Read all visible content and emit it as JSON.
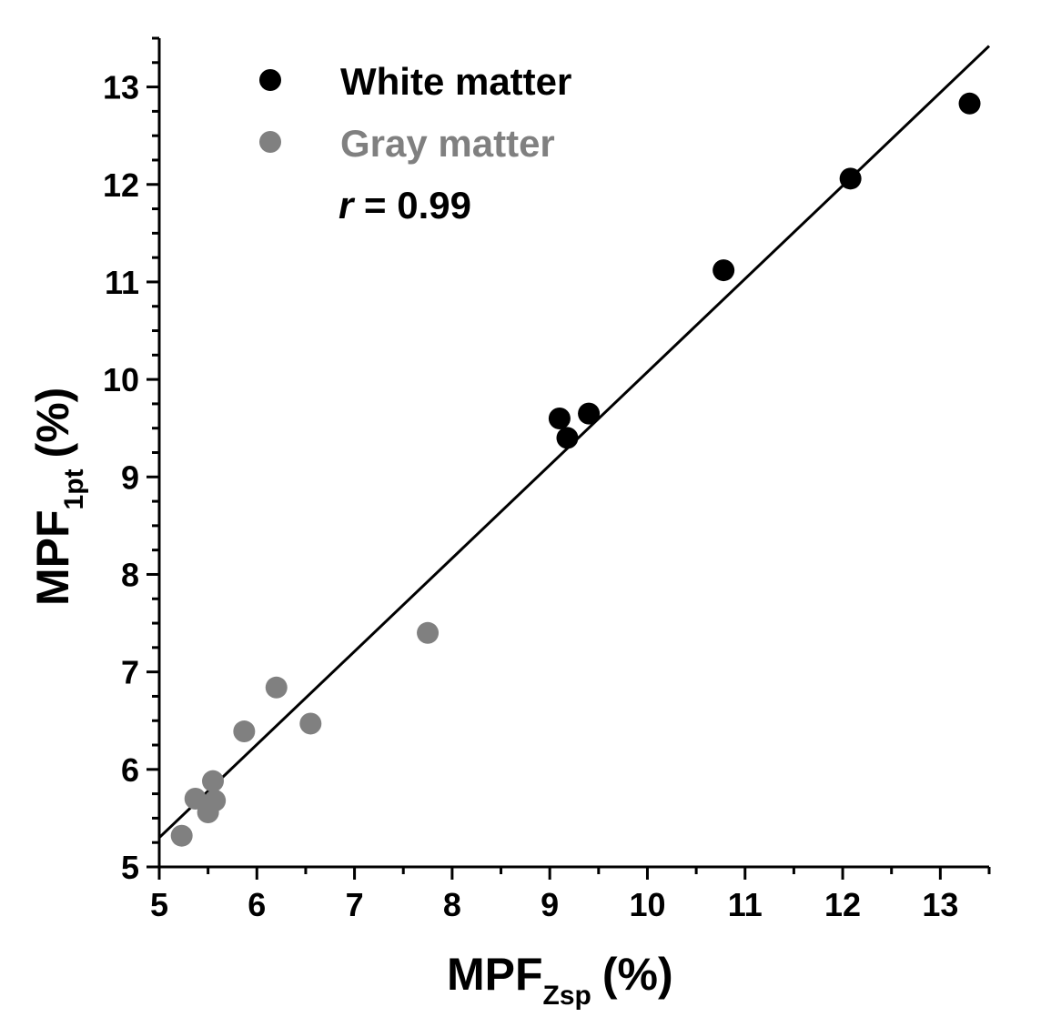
{
  "chart_data": {
    "type": "scatter",
    "xlabel": {
      "main": "MPF",
      "sub": "Zsp",
      "unit": "(%)"
    },
    "ylabel": {
      "main": "MPF",
      "sub": "1pt",
      "unit": "(%)"
    },
    "xlim": [
      5,
      13.5
    ],
    "ylim": [
      5,
      13.5
    ],
    "xticks": [
      5,
      6,
      7,
      8,
      9,
      10,
      11,
      12,
      13
    ],
    "yticks": [
      5,
      6,
      7,
      8,
      9,
      10,
      11,
      12,
      13
    ],
    "series": [
      {
        "name": "White matter",
        "color": "#000000",
        "points": [
          {
            "x": 9.1,
            "y": 9.6
          },
          {
            "x": 9.18,
            "y": 9.4
          },
          {
            "x": 9.4,
            "y": 9.65
          },
          {
            "x": 10.78,
            "y": 11.12
          },
          {
            "x": 12.08,
            "y": 12.06
          },
          {
            "x": 13.3,
            "y": 12.83
          }
        ]
      },
      {
        "name": "Gray matter",
        "color": "#808080",
        "points": [
          {
            "x": 5.23,
            "y": 5.32
          },
          {
            "x": 5.37,
            "y": 5.7
          },
          {
            "x": 5.5,
            "y": 5.56
          },
          {
            "x": 5.55,
            "y": 5.88
          },
          {
            "x": 5.57,
            "y": 5.68
          },
          {
            "x": 5.87,
            "y": 6.39
          },
          {
            "x": 6.2,
            "y": 6.84
          },
          {
            "x": 6.55,
            "y": 6.47
          },
          {
            "x": 7.75,
            "y": 7.4
          }
        ]
      }
    ],
    "fit_line": {
      "x0": 5,
      "y0": 5.3,
      "x1": 13.5,
      "y1": 13.42
    },
    "annotation": {
      "prefix": "r",
      "text": " = 0.99"
    },
    "legend_position": "top-left"
  }
}
